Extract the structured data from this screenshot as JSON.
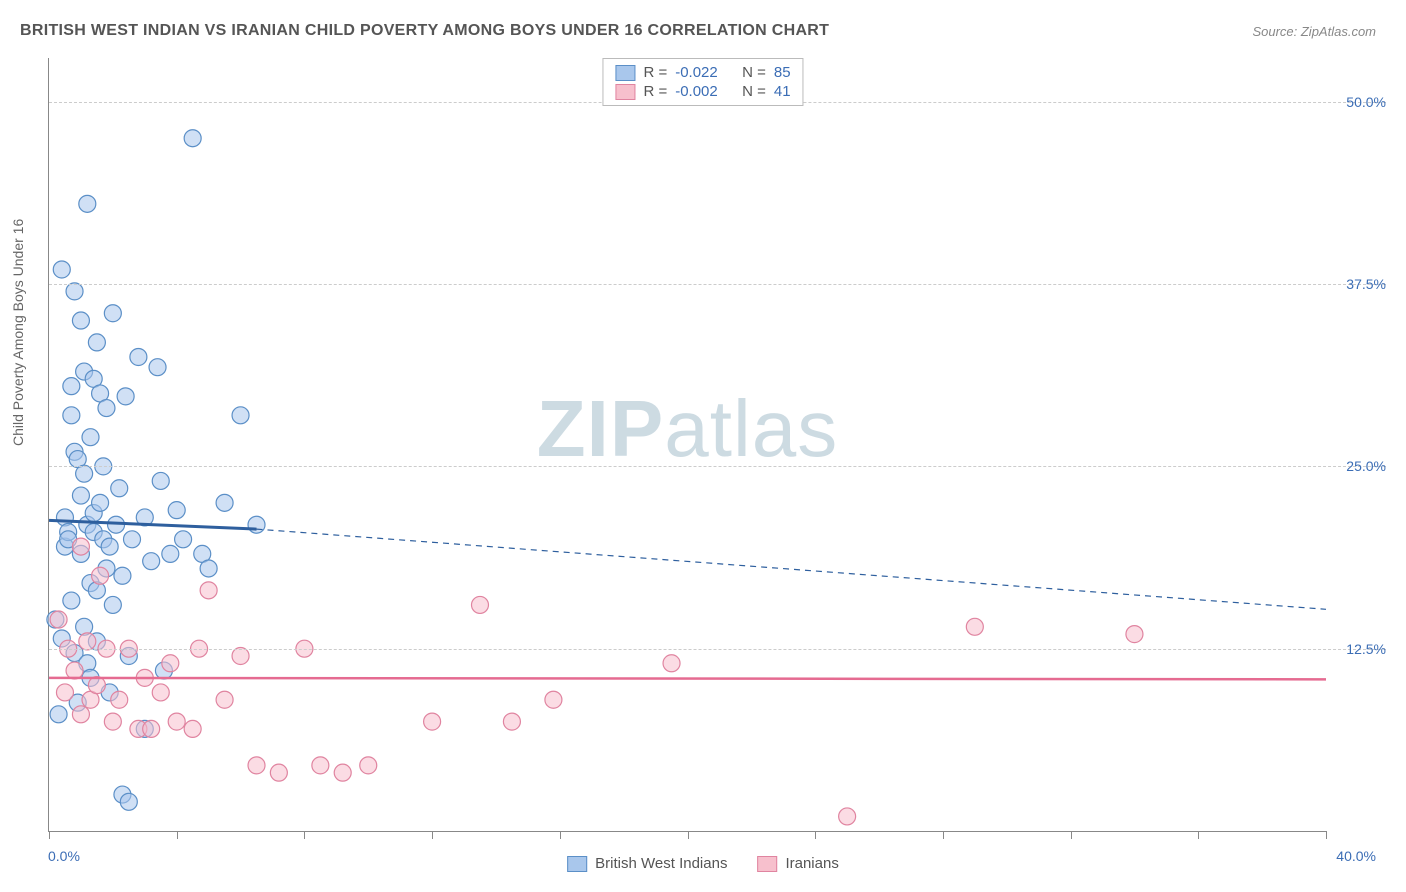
{
  "title": "BRITISH WEST INDIAN VS IRANIAN CHILD POVERTY AMONG BOYS UNDER 16 CORRELATION CHART",
  "source": "Source: ZipAtlas.com",
  "ylabel": "Child Poverty Among Boys Under 16",
  "watermark_bold": "ZIP",
  "watermark_rest": "atlas",
  "chart": {
    "type": "scatter",
    "xlim": [
      0,
      40
    ],
    "ylim": [
      0,
      53
    ],
    "xticks": [
      0,
      40
    ],
    "xtick_labels": [
      "0.0%",
      "40.0%"
    ],
    "yticks": [
      12.5,
      25.0,
      37.5,
      50.0
    ],
    "ytick_labels": [
      "12.5%",
      "25.0%",
      "37.5%",
      "50.0%"
    ],
    "vtick_positions": [
      0,
      4,
      8,
      12,
      16,
      20,
      24,
      28,
      32,
      36,
      40
    ],
    "background_color": "#ffffff",
    "grid_color": "#cccccc",
    "marker_radius": 8.5,
    "marker_stroke_width": 1.2,
    "series": [
      {
        "name": "British West Indians",
        "fill": "#a9c7ec",
        "fill_opacity": 0.55,
        "stroke": "#5b8fc7",
        "R": "-0.022",
        "N": "85",
        "trend": {
          "solid_from": [
            0,
            21.3
          ],
          "solid_to": [
            6.5,
            20.7
          ],
          "dashed_to": [
            40,
            15.2
          ],
          "color": "#2e5f9e",
          "width": 3
        },
        "points": [
          [
            0.2,
            14.5
          ],
          [
            0.3,
            8.0
          ],
          [
            0.4,
            13.2
          ],
          [
            0.4,
            38.5
          ],
          [
            0.5,
            21.5
          ],
          [
            0.5,
            19.5
          ],
          [
            0.6,
            20.5
          ],
          [
            0.6,
            20.0
          ],
          [
            0.7,
            28.5
          ],
          [
            0.7,
            15.8
          ],
          [
            0.7,
            30.5
          ],
          [
            0.8,
            26.0
          ],
          [
            0.8,
            37.0
          ],
          [
            0.8,
            12.2
          ],
          [
            0.9,
            8.8
          ],
          [
            0.9,
            25.5
          ],
          [
            1.0,
            35.0
          ],
          [
            1.0,
            23.0
          ],
          [
            1.0,
            19.0
          ],
          [
            1.1,
            24.5
          ],
          [
            1.1,
            31.5
          ],
          [
            1.1,
            14.0
          ],
          [
            1.2,
            21.0
          ],
          [
            1.2,
            11.5
          ],
          [
            1.2,
            43.0
          ],
          [
            1.3,
            17.0
          ],
          [
            1.3,
            27.0
          ],
          [
            1.3,
            10.5
          ],
          [
            1.4,
            31.0
          ],
          [
            1.4,
            21.8
          ],
          [
            1.4,
            20.5
          ],
          [
            1.5,
            16.5
          ],
          [
            1.5,
            33.5
          ],
          [
            1.5,
            13.0
          ],
          [
            1.6,
            22.5
          ],
          [
            1.6,
            30.0
          ],
          [
            1.7,
            20.0
          ],
          [
            1.7,
            25.0
          ],
          [
            1.8,
            18.0
          ],
          [
            1.8,
            29.0
          ],
          [
            1.9,
            19.5
          ],
          [
            1.9,
            9.5
          ],
          [
            2.0,
            35.5
          ],
          [
            2.0,
            15.5
          ],
          [
            2.1,
            21.0
          ],
          [
            2.2,
            23.5
          ],
          [
            2.3,
            17.5
          ],
          [
            2.3,
            2.5
          ],
          [
            2.4,
            29.8
          ],
          [
            2.5,
            12.0
          ],
          [
            2.5,
            2.0
          ],
          [
            2.6,
            20.0
          ],
          [
            2.8,
            32.5
          ],
          [
            3.0,
            21.5
          ],
          [
            3.0,
            7.0
          ],
          [
            3.2,
            18.5
          ],
          [
            3.4,
            31.8
          ],
          [
            3.5,
            24.0
          ],
          [
            3.6,
            11.0
          ],
          [
            3.8,
            19.0
          ],
          [
            4.0,
            22.0
          ],
          [
            4.2,
            20.0
          ],
          [
            4.5,
            47.5
          ],
          [
            4.8,
            19.0
          ],
          [
            5.0,
            18.0
          ],
          [
            5.5,
            22.5
          ],
          [
            6.0,
            28.5
          ],
          [
            6.5,
            21.0
          ]
        ]
      },
      {
        "name": "Iranians",
        "fill": "#f7c0cd",
        "fill_opacity": 0.55,
        "stroke": "#e084a0",
        "R": "-0.002",
        "N": "41",
        "trend": {
          "solid_from": [
            0,
            10.5
          ],
          "solid_to": [
            40,
            10.4
          ],
          "color": "#e56b91",
          "width": 2.5
        },
        "points": [
          [
            0.3,
            14.5
          ],
          [
            0.5,
            9.5
          ],
          [
            0.6,
            12.5
          ],
          [
            0.8,
            11.0
          ],
          [
            1.0,
            8.0
          ],
          [
            1.0,
            19.5
          ],
          [
            1.2,
            13.0
          ],
          [
            1.3,
            9.0
          ],
          [
            1.5,
            10.0
          ],
          [
            1.6,
            17.5
          ],
          [
            1.8,
            12.5
          ],
          [
            2.0,
            7.5
          ],
          [
            2.2,
            9.0
          ],
          [
            2.5,
            12.5
          ],
          [
            2.8,
            7.0
          ],
          [
            3.0,
            10.5
          ],
          [
            3.2,
            7.0
          ],
          [
            3.5,
            9.5
          ],
          [
            3.8,
            11.5
          ],
          [
            4.0,
            7.5
          ],
          [
            4.5,
            7.0
          ],
          [
            4.7,
            12.5
          ],
          [
            5.0,
            16.5
          ],
          [
            5.5,
            9.0
          ],
          [
            6.0,
            12.0
          ],
          [
            6.5,
            4.5
          ],
          [
            7.2,
            4.0
          ],
          [
            8.0,
            12.5
          ],
          [
            8.5,
            4.5
          ],
          [
            9.2,
            4.0
          ],
          [
            10.0,
            4.5
          ],
          [
            12.0,
            7.5
          ],
          [
            13.5,
            15.5
          ],
          [
            14.5,
            7.5
          ],
          [
            15.8,
            9.0
          ],
          [
            19.5,
            11.5
          ],
          [
            25.0,
            1.0
          ],
          [
            29.0,
            14.0
          ],
          [
            34.0,
            13.5
          ]
        ]
      }
    ]
  },
  "stat_legend": {
    "r_label": "R =",
    "n_label": "N ="
  },
  "bottom_legend": {
    "label1": "British West Indians",
    "label2": "Iranians"
  }
}
